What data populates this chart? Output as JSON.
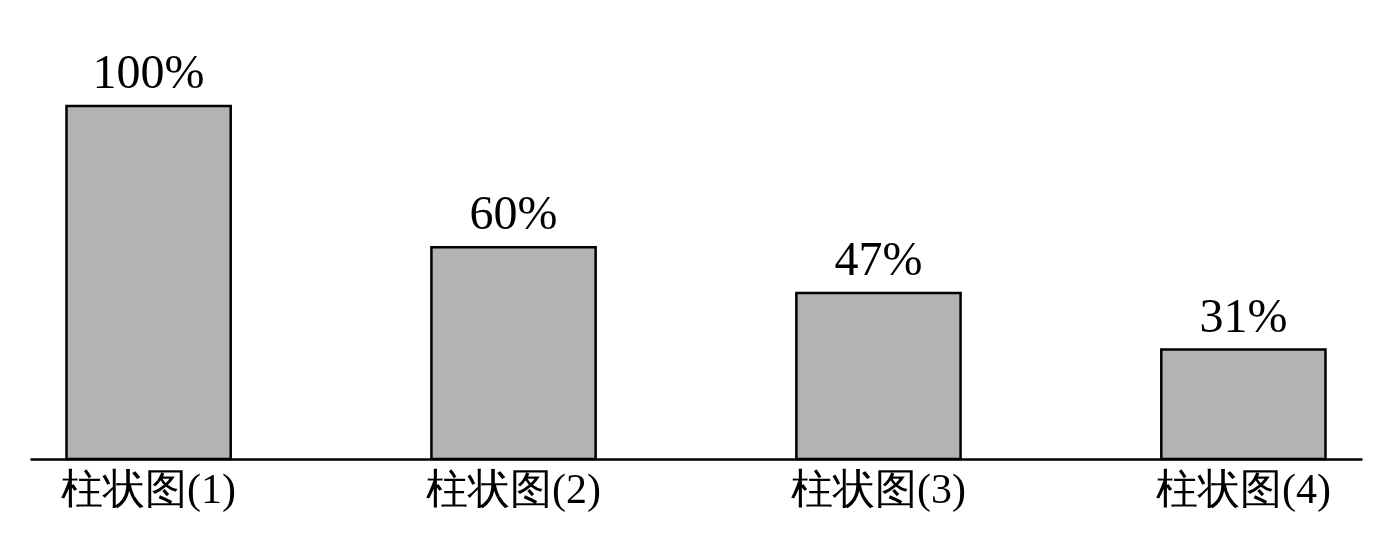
{
  "chart_data": {
    "type": "bar",
    "categories": [
      "柱状图(1)",
      "柱状图(2)",
      "柱状图(3)",
      "柱状图(4)"
    ],
    "values": [
      100,
      60,
      47,
      31
    ],
    "value_labels": [
      "100%",
      "60%",
      "47%",
      "31%"
    ],
    "color": "#b3b3b3"
  }
}
